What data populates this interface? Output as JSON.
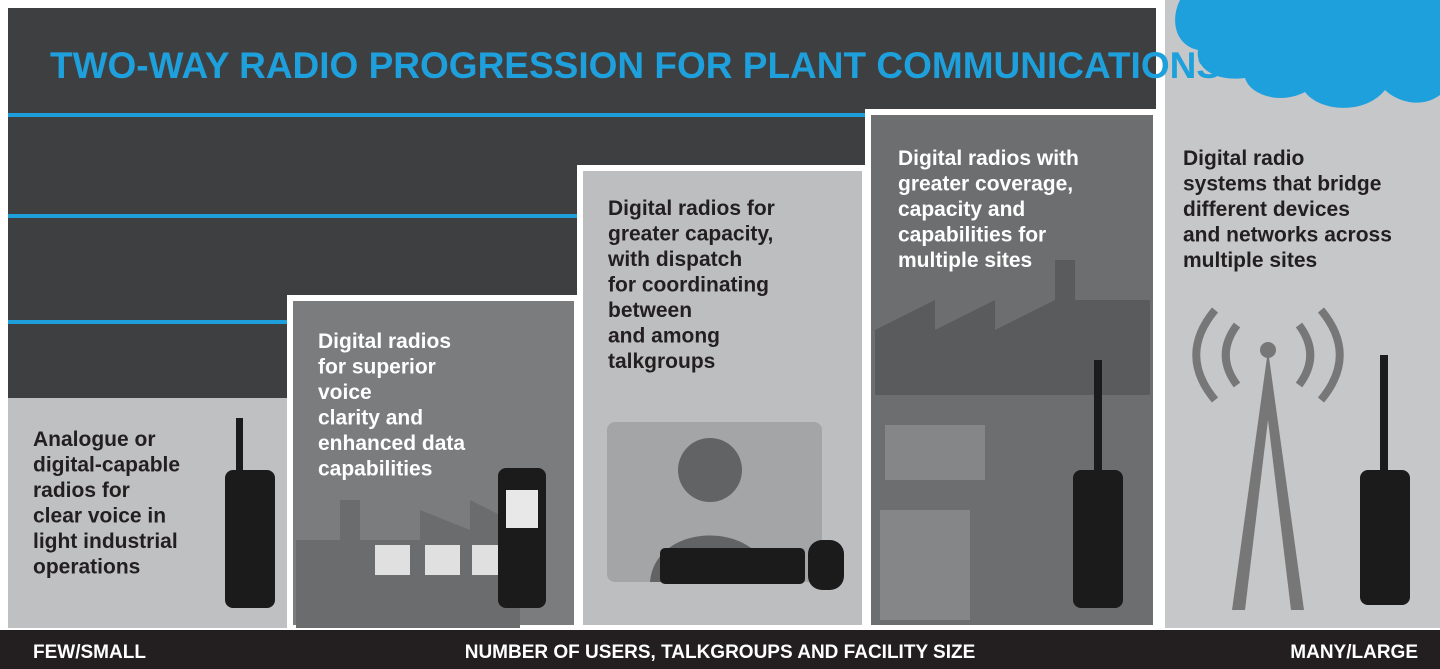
{
  "header": {
    "title": "TWO-WAY RADIO PROGRESSION FOR PLANT COMMUNICATIONS"
  },
  "columns": [
    {
      "lines": [
        "Analogue or",
        "digital-capable",
        "radios for",
        "clear voice in",
        "light industrial",
        "operations"
      ]
    },
    {
      "lines": [
        "Digital radios",
        "for superior",
        "voice",
        "clarity and",
        "enhanced data",
        "capabilities"
      ]
    },
    {
      "lines": [
        "Digital radios for",
        "greater capacity,",
        "with dispatch",
        "for coordinating",
        "between",
        "and among",
        "talkgroups"
      ]
    },
    {
      "lines": [
        "Digital radios with",
        "greater coverage,",
        "capacity and",
        "capabilities for",
        "multiple sites"
      ]
    },
    {
      "lines": [
        "Digital radio",
        "systems that bridge",
        "different devices",
        "and networks across",
        "multiple sites"
      ]
    }
  ],
  "footer": {
    "left": "FEW/SMALL",
    "center": "NUMBER OF USERS, TALKGROUPS AND FACILITY SIZE",
    "right": "MANY/LARGE"
  }
}
